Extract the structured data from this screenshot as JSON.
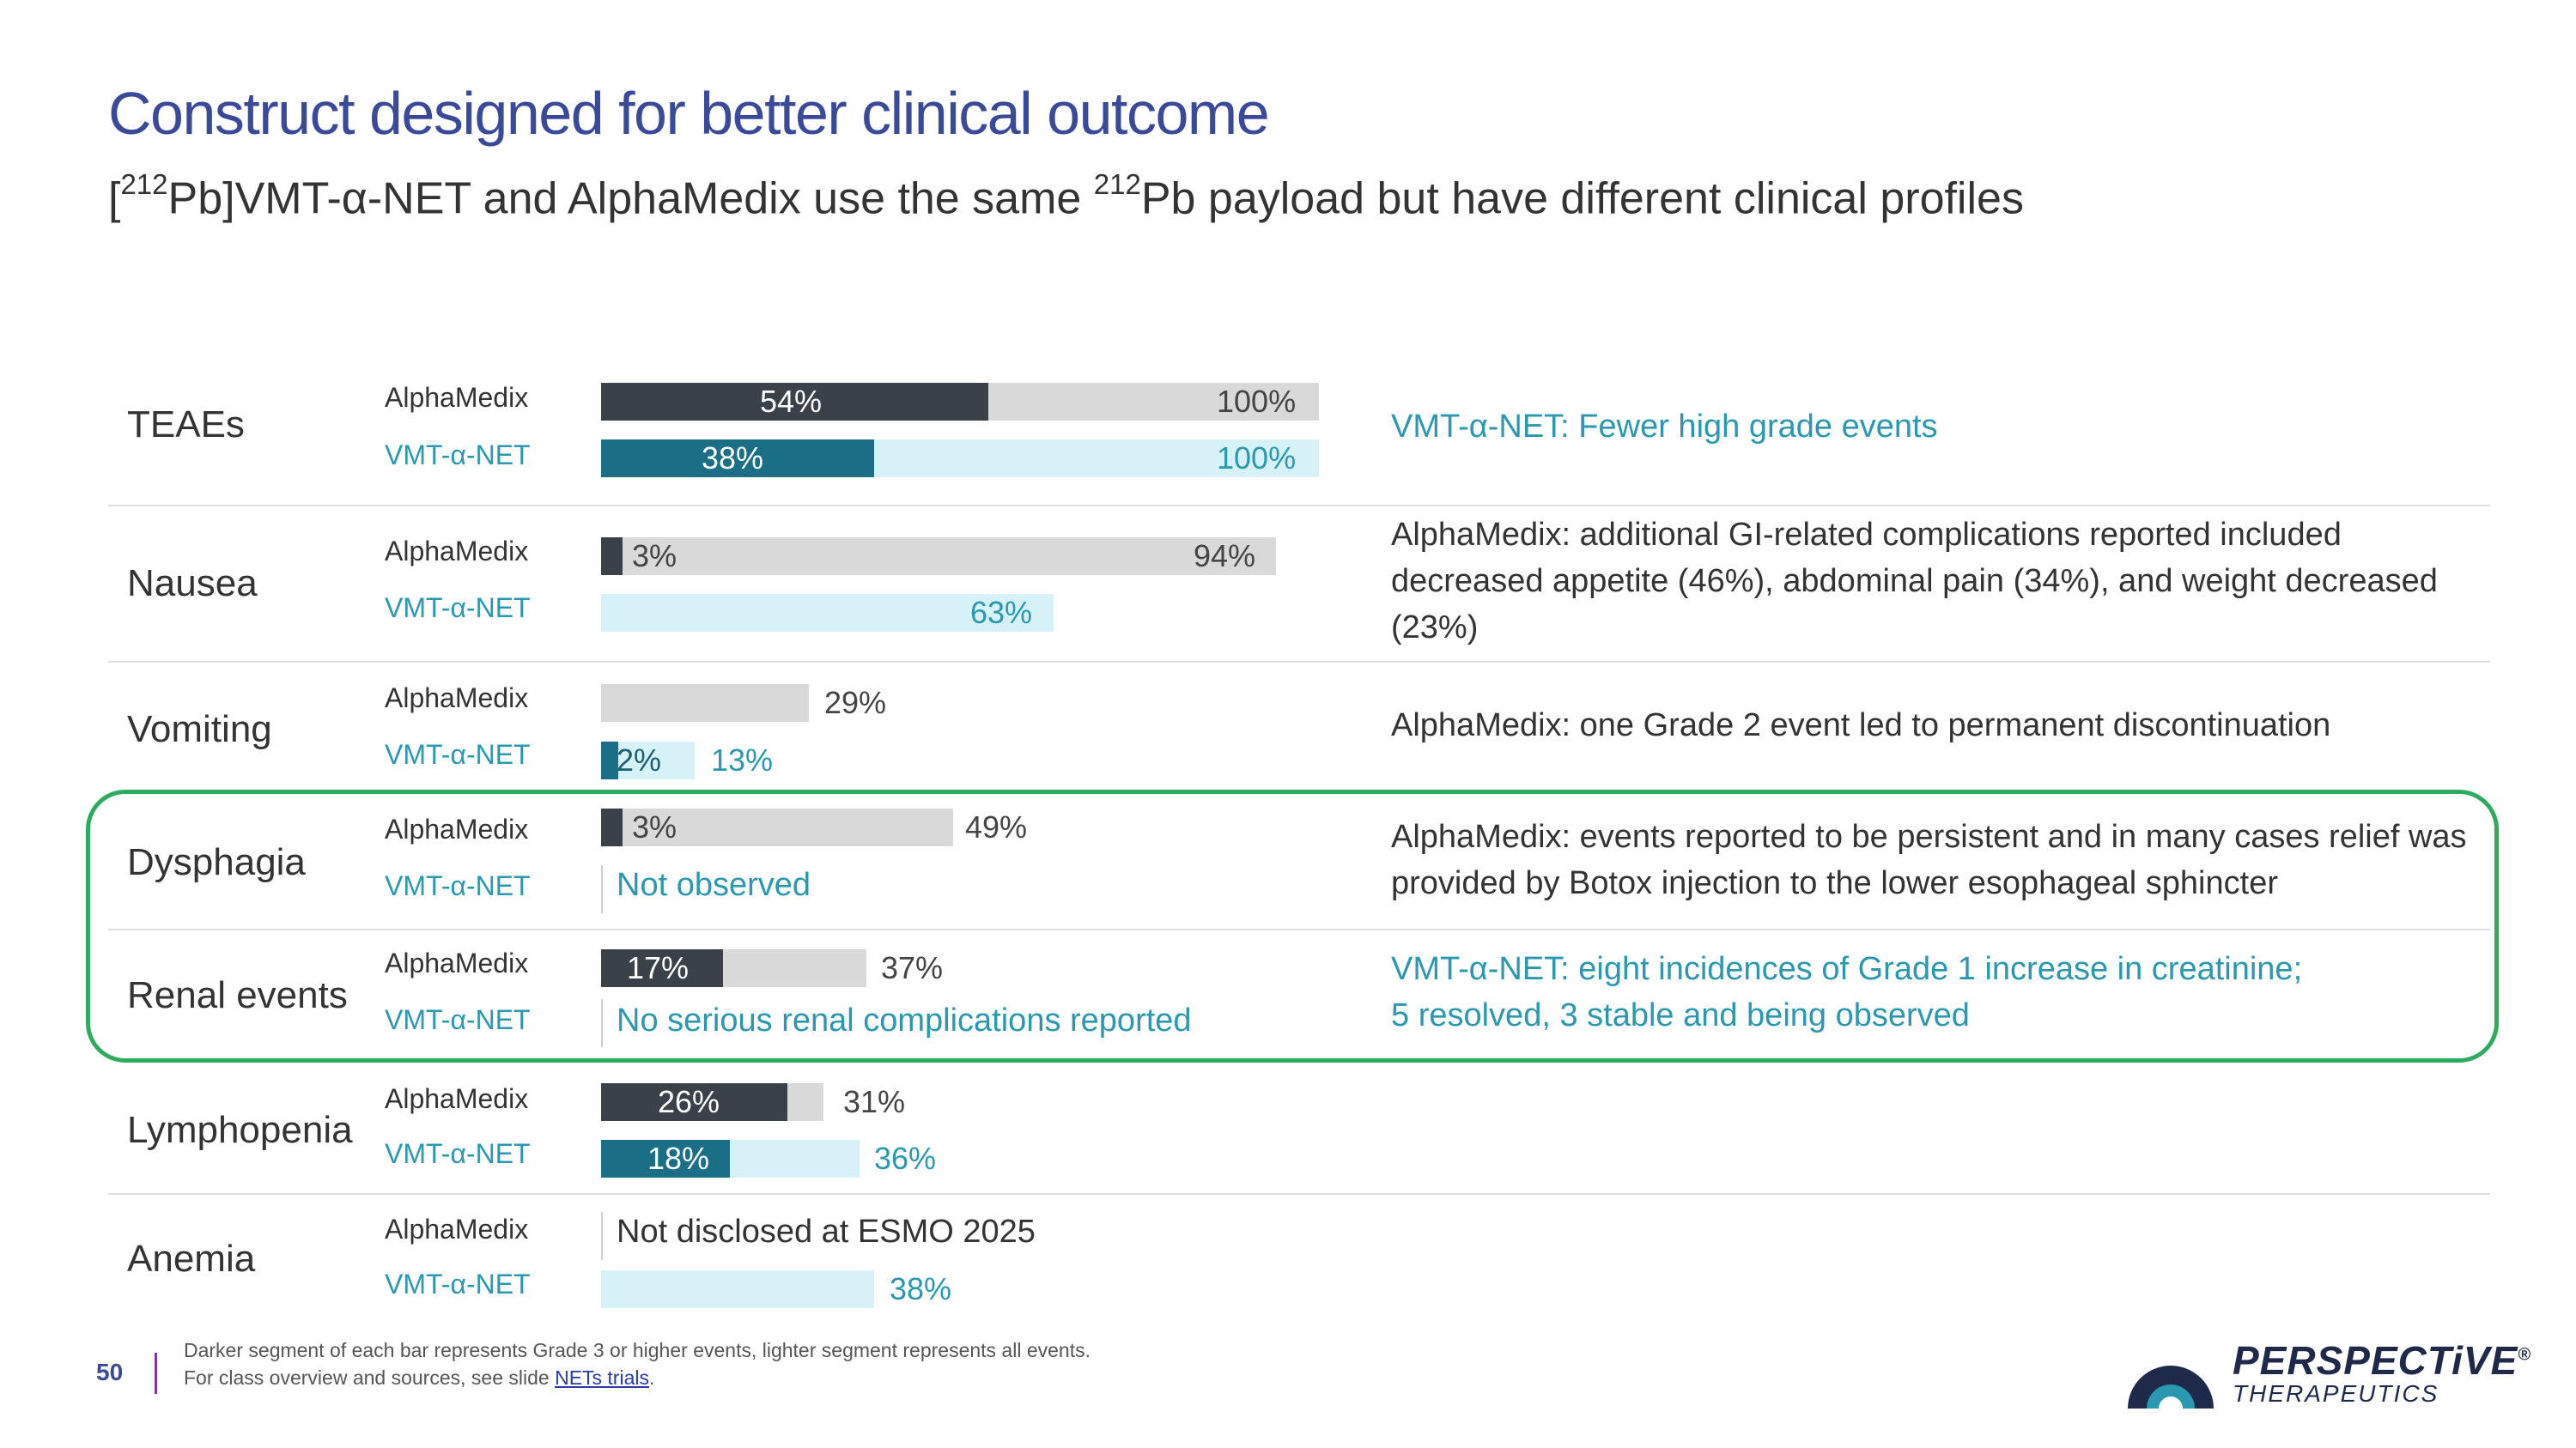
{
  "header": {
    "title": "Construct designed for better clinical outcome",
    "subtitle_pre": "[",
    "subtitle_sup1": "212",
    "subtitle_mid": "Pb]VMT-α-NET and AlphaMedix use the same ",
    "subtitle_sup2": "212",
    "subtitle_post": "Pb payload but have different clinical profiles"
  },
  "drugs": {
    "alphamedix": "AlphaMedix",
    "vmt": "VMT-α-NET"
  },
  "colors": {
    "alphamedix_dark": "#3b4148",
    "alphamedix_light": "#d9d9d9",
    "vmt_dark": "#1a6f86",
    "vmt_light": "#d6f1f7",
    "highlight": "#2dab5e",
    "title": "#3a4a9a"
  },
  "rows": [
    {
      "category": "TEAEs",
      "am": {
        "grade3": 54,
        "all": 100,
        "grade3_label": "54%",
        "all_label": "100%"
      },
      "vmt": {
        "grade3": 38,
        "all": 100,
        "grade3_label": "38%",
        "all_label": "100%"
      },
      "note": "VMT-α-NET: Fewer high grade events"
    },
    {
      "category": "Nausea",
      "am": {
        "grade3": 3,
        "all": 94,
        "grade3_label": "3%",
        "all_label": "94%"
      },
      "vmt": {
        "grade3": 0,
        "all": 63,
        "all_label": "63%"
      },
      "note": "AlphaMedix: additional GI-related complications reported included decreased appetite (46%), abdominal pain (34%), and weight decreased (23%)"
    },
    {
      "category": "Vomiting",
      "am": {
        "grade3": 0,
        "all": 29,
        "all_label": "29%"
      },
      "vmt": {
        "grade3": 2,
        "all": 13,
        "grade3_label": "2%",
        "all_label": "13%"
      },
      "note": "AlphaMedix: one Grade 2 event led to permanent discontinuation"
    },
    {
      "category": "Dysphagia",
      "am": {
        "grade3": 3,
        "all": 49,
        "grade3_label": "3%",
        "all_label": "49%"
      },
      "vmt_text": "Not observed",
      "note": "AlphaMedix: events reported to be persistent and in many cases relief was provided by Botox injection to the lower esophageal sphincter"
    },
    {
      "category": "Renal events",
      "am": {
        "grade3": 17,
        "all": 37,
        "grade3_label": "17%",
        "all_label": "37%"
      },
      "vmt_text": "No serious renal complications reported",
      "note_line1": "VMT-α-NET: eight incidences of Grade 1 increase in creatinine;",
      "note_line2": "5 resolved, 3 stable and being observed"
    },
    {
      "category": "Lymphopenia",
      "am": {
        "grade3": 26,
        "all": 31,
        "grade3_label": "26%",
        "all_label": "31%"
      },
      "vmt": {
        "grade3": 18,
        "all": 36,
        "grade3_label": "18%",
        "all_label": "36%"
      }
    },
    {
      "category": "Anemia",
      "am_text": "Not disclosed at ESMO 2025",
      "vmt": {
        "grade3": 0,
        "all": 38,
        "all_label": "38%"
      }
    }
  ],
  "footer": {
    "page_number": "50",
    "note1": "Darker segment of each bar represents Grade 3 or higher events, lighter segment represents all events.",
    "note2_pre": "For class overview and sources, see slide ",
    "note2_link": "NETs trials",
    "note2_post": "."
  },
  "logo": {
    "name": "PERSPECTiVE",
    "mark": "®",
    "sub": "THERAPEUTICS"
  }
}
